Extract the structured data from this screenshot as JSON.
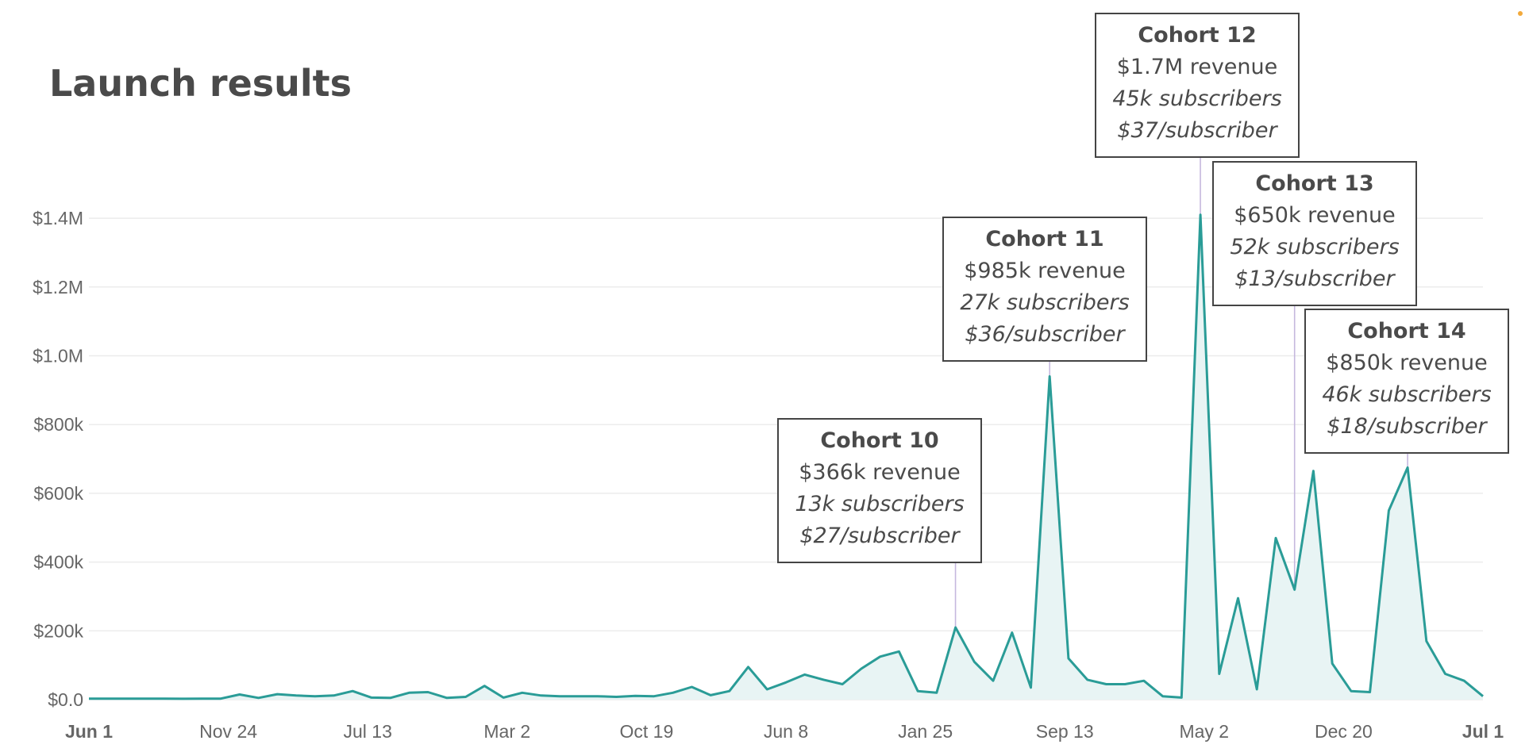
{
  "chart_data": {
    "type": "area",
    "title": "Launch results",
    "xlabel": "",
    "ylabel": "",
    "ylim": [
      0,
      1500000
    ],
    "y_ticks": [
      "$0.0",
      "$200k",
      "$400k",
      "$600k",
      "$800k",
      "$1.0M",
      "$1.2M",
      "$1.4M"
    ],
    "x_ticks": [
      "Jun 1",
      "Nov 24",
      "Jul 13",
      "Mar 2",
      "Oct 19",
      "Jun 8",
      "Jan 25",
      "Sep 13",
      "May 2",
      "Dec 20",
      "Jul 1"
    ],
    "grid": true,
    "series": [
      {
        "values": [
          3000,
          3000,
          3000,
          3000,
          3000,
          2500,
          3000,
          3000,
          15000,
          5000,
          16000,
          12000,
          10000,
          12000,
          25000,
          6000,
          5000,
          20000,
          22000,
          5000,
          8000,
          40000,
          6000,
          20000,
          12000,
          10000,
          10000,
          10000,
          8000,
          11000,
          10000,
          20000,
          37000,
          13000,
          25000,
          95000,
          30000,
          50000,
          73000,
          58000,
          45000,
          90000,
          125000,
          140000,
          25000,
          20000,
          210000,
          110000,
          55000,
          195000,
          35000,
          940000,
          120000,
          58000,
          45000,
          45000,
          55000,
          10000,
          6000,
          1410000,
          75000,
          295000,
          30000,
          470000,
          320000,
          665000,
          105000,
          25000,
          22000,
          550000,
          675000,
          170000,
          75000,
          55000,
          10000
        ]
      }
    ],
    "annotations": [
      {
        "name": "Cohort 10",
        "revenue": "$366k revenue",
        "subscribers": "13k subscribers",
        "per_subscriber": "$27/subscriber",
        "point_index": 46
      },
      {
        "name": "Cohort 11",
        "revenue": "$985k revenue",
        "subscribers": "27k subscribers",
        "per_subscriber": "$36/subscriber",
        "point_index": 51
      },
      {
        "name": "Cohort 12",
        "revenue": "$1.7M revenue",
        "subscribers": "45k subscribers",
        "per_subscriber": "$37/subscriber",
        "point_index": 59
      },
      {
        "name": "Cohort 13",
        "revenue": "$650k revenue",
        "subscribers": "52k subscribers",
        "per_subscriber": "$13/subscriber",
        "point_index": 64
      },
      {
        "name": "Cohort 14",
        "revenue": "$850k revenue",
        "subscribers": "46k subscribers",
        "per_subscriber": "$18/subscriber",
        "point_index": 70
      }
    ],
    "colors": {
      "line": "#2a9c97",
      "area": "#e8f4f4",
      "leader": "#c5b8de",
      "corner_marker": "#f2a93b"
    }
  }
}
